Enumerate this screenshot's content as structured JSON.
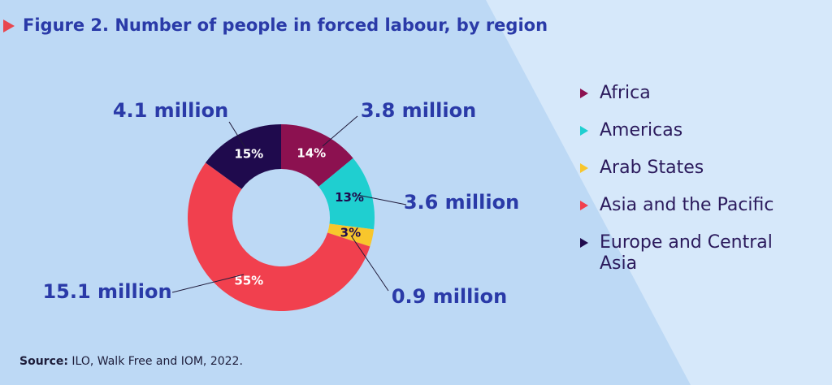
{
  "chart_data": {
    "type": "donut",
    "title": "Figure 2. Number of people in forced labour, by region",
    "categories": [
      "Africa",
      "Americas",
      "Arab States",
      "Asia and the Pacific",
      "Europe and Central Asia"
    ],
    "values": [
      14,
      13,
      3,
      55,
      15
    ],
    "value_labels": [
      "14%",
      "13%",
      "3%",
      "55%",
      "15%"
    ],
    "amounts": [
      3800000,
      3600000,
      900000,
      15100000,
      4100000
    ],
    "amount_labels": [
      "3.8 million",
      "3.6 million",
      "0.9 million",
      "15.1 million",
      "4.1 million"
    ],
    "colors": [
      "#8c1150",
      "#1fcfd0",
      "#f8c62c",
      "#f1404e",
      "#1f0a4d"
    ],
    "legend": "right"
  },
  "source": {
    "label": "Source:",
    "text": "ILO, Walk Free and IOM, 2022."
  }
}
